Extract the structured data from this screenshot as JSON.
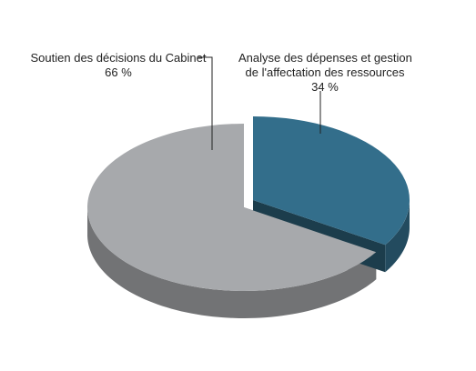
{
  "chart_data": {
    "type": "pie",
    "style": "3d-exploded",
    "slices": [
      {
        "label_line1": "Soutien des décisions du Cabinet",
        "value_text": "66 %",
        "value": 66,
        "color": "#a7a9ac"
      },
      {
        "label_line1": "Analyse des dépenses et gestion",
        "label_line2": "de l'affectation des ressources",
        "value_text": "34 %",
        "value": 34,
        "color": "#336e8b"
      }
    ],
    "legend": "none",
    "grid": false
  }
}
